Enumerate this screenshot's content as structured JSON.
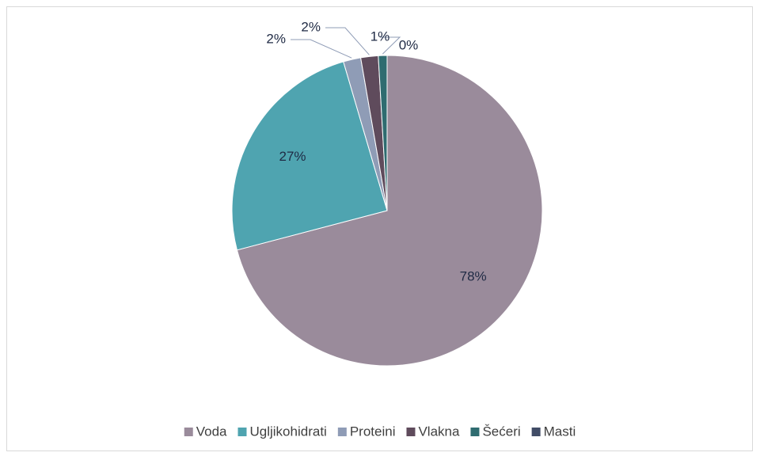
{
  "chart_data": {
    "type": "pie",
    "categories": [
      "Voda",
      "Ugljikohidrati",
      "Proteini",
      "Vlakna",
      "Šećeri",
      "Masti"
    ],
    "values": [
      78,
      27,
      2,
      2,
      1,
      0
    ],
    "value_labels": [
      "78%",
      "27%",
      "2%",
      "2%",
      "1%",
      "0%"
    ],
    "colors": [
      "#9a8b9b",
      "#4fa4b0",
      "#8f9cb6",
      "#5f4b5c",
      "#2f6c70",
      "#414c66"
    ],
    "legend": "bottom"
  }
}
